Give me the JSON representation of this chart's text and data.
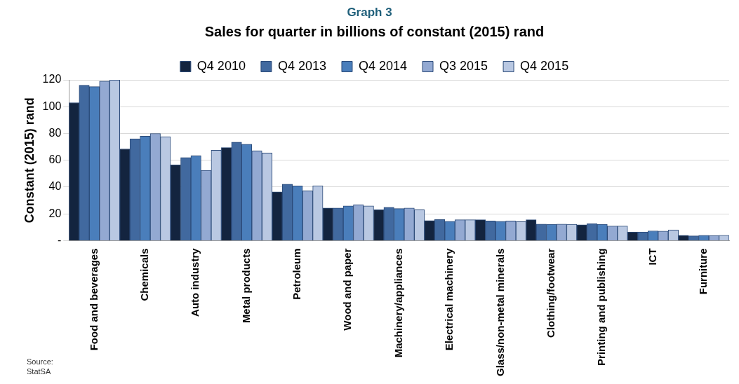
{
  "chart_data": {
    "type": "bar",
    "title": "Sales for quarter in billions of constant (2015) rand",
    "ylabel": "Constant (2015) rand",
    "annotations": [
      "Graph 3",
      "Source: StatSA"
    ],
    "categories": [
      "Food and beverages",
      "Chemicals",
      "Auto industry",
      "Metal products",
      "Petroleum",
      "Wood and paper",
      "Machinery/appliances",
      "Electrical machinery",
      "Glass/non-metal minerals",
      "Clothing/footwear",
      "Printing and publishing",
      "ICT",
      "Furniture"
    ],
    "series": [
      {
        "name": "Q4 2010",
        "color": "#13243f",
        "values": [
          103,
          68.5,
          56.6,
          69.5,
          36.4,
          24.4,
          23.1,
          14.9,
          15.6,
          15.6,
          11.8,
          6.4,
          4
        ]
      },
      {
        "name": "Q4 2013",
        "color": "#41699f",
        "values": [
          116,
          76,
          62,
          73.5,
          42.2,
          24.4,
          24.9,
          15.8,
          14.7,
          12.4,
          12.7,
          6.4,
          3.6
        ]
      },
      {
        "name": "Q4 2014",
        "color": "#4a7ebb",
        "values": [
          115,
          78,
          63.4,
          72,
          40.9,
          26,
          24,
          14.4,
          14.4,
          12.2,
          12.2,
          7.3,
          4
        ]
      },
      {
        "name": "Q3 2015",
        "color": "#93a9d2",
        "values": [
          119,
          80,
          52.5,
          67,
          37.2,
          26.9,
          24.4,
          15.6,
          14.7,
          12.4,
          10.9,
          7.1,
          3.8
        ]
      },
      {
        "name": "Q4 2015",
        "color": "#b9c8e2",
        "values": [
          120,
          77.6,
          67.5,
          65.4,
          41,
          26,
          23.1,
          15.6,
          14.2,
          12.2,
          10.9,
          8,
          4
        ]
      }
    ],
    "ylim": [
      0,
      120
    ],
    "yticks": [
      {
        "value": 0,
        "label": "-"
      },
      20,
      40,
      60,
      80,
      100,
      120
    ],
    "grid": "y",
    "legend": "top"
  }
}
